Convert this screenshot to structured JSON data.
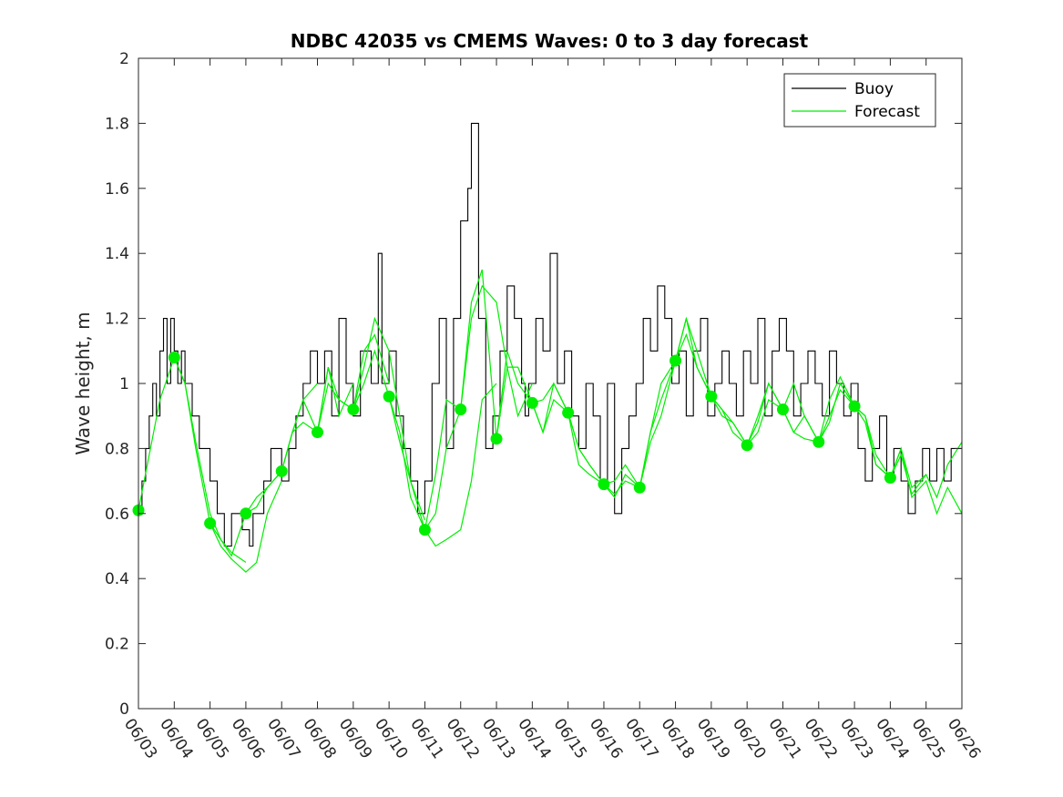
{
  "chart_data": {
    "type": "line",
    "title": "NDBC 42035 vs CMEMS Waves: 0 to 3 day forecast",
    "xlabel": "",
    "ylabel": "Wave height, m",
    "ylim": [
      0,
      2
    ],
    "yticks": [
      "0",
      "0.2",
      "0.4",
      "0.6",
      "0.8",
      "1",
      "1.2",
      "1.4",
      "1.6",
      "1.8",
      "2"
    ],
    "xlim": [
      0,
      23
    ],
    "xticks": [
      "06/03",
      "06/04",
      "06/05",
      "06/06",
      "06/07",
      "06/08",
      "06/09",
      "06/10",
      "06/11",
      "06/12",
      "06/13",
      "06/14",
      "06/15",
      "06/16",
      "06/17",
      "06/18",
      "06/19",
      "06/20",
      "06/21",
      "06/22",
      "06/23",
      "06/24",
      "06/25",
      "06/26"
    ],
    "legend": {
      "placement": "top-right",
      "entries": [
        "Buoy",
        "Forecast"
      ]
    },
    "colors": {
      "buoy": "#000000",
      "forecast": "#00ee00"
    },
    "buoy": {
      "x": [
        0,
        0.1,
        0.2,
        0.3,
        0.4,
        0.5,
        0.6,
        0.7,
        0.8,
        0.9,
        1.0,
        1.1,
        1.2,
        1.3,
        1.5,
        1.7,
        2.0,
        2.2,
        2.4,
        2.6,
        2.9,
        3.1,
        3.2,
        3.5,
        3.7,
        4.0,
        4.2,
        4.4,
        4.6,
        4.8,
        5.0,
        5.2,
        5.4,
        5.6,
        5.8,
        6.0,
        6.2,
        6.5,
        6.7,
        6.8,
        7.0,
        7.2,
        7.4,
        7.6,
        7.8,
        8.0,
        8.2,
        8.4,
        8.6,
        8.8,
        9.0,
        9.2,
        9.3,
        9.5,
        9.7,
        9.9,
        10.1,
        10.3,
        10.5,
        10.7,
        10.8,
        10.9,
        11.1,
        11.3,
        11.5,
        11.7,
        11.9,
        12.1,
        12.3,
        12.5,
        12.7,
        12.9,
        13.1,
        13.3,
        13.5,
        13.7,
        13.9,
        14.1,
        14.3,
        14.5,
        14.7,
        14.9,
        15.1,
        15.3,
        15.5,
        15.7,
        15.9,
        16.1,
        16.3,
        16.5,
        16.7,
        16.9,
        17.1,
        17.3,
        17.5,
        17.7,
        17.9,
        18.1,
        18.3,
        18.5,
        18.7,
        18.9,
        19.1,
        19.3,
        19.5,
        19.7,
        19.9,
        20.1,
        20.3,
        20.5,
        20.7,
        20.9,
        21.1,
        21.3,
        21.5,
        21.7,
        21.9,
        22.1,
        22.3,
        22.5,
        22.7,
        23.0
      ],
      "y": [
        0.6,
        0.7,
        0.8,
        0.9,
        1.0,
        0.9,
        1.1,
        1.2,
        1.0,
        1.2,
        1.1,
        1.0,
        1.1,
        1.0,
        0.9,
        0.8,
        0.7,
        0.6,
        0.5,
        0.6,
        0.55,
        0.5,
        0.6,
        0.7,
        0.8,
        0.7,
        0.8,
        0.9,
        1.0,
        1.1,
        1.0,
        1.1,
        0.9,
        1.2,
        1.0,
        0.9,
        1.1,
        1.0,
        1.4,
        1.0,
        1.1,
        0.9,
        0.8,
        0.7,
        0.6,
        0.7,
        1.0,
        1.2,
        0.8,
        1.2,
        1.5,
        1.6,
        1.8,
        1.2,
        0.8,
        0.9,
        1.1,
        1.3,
        1.2,
        1.0,
        0.9,
        1.0,
        1.2,
        1.1,
        1.4,
        1.0,
        1.1,
        0.9,
        0.8,
        1.0,
        0.9,
        0.7,
        1.0,
        0.6,
        0.8,
        0.9,
        1.0,
        1.2,
        1.1,
        1.3,
        1.2,
        1.0,
        1.1,
        0.9,
        1.1,
        1.2,
        0.9,
        1.0,
        1.1,
        1.0,
        0.9,
        1.1,
        1.0,
        1.2,
        0.9,
        1.1,
        1.2,
        1.1,
        0.9,
        1.0,
        1.1,
        1.0,
        0.9,
        1.1,
        1.0,
        0.9,
        1.0,
        0.8,
        0.7,
        0.8,
        0.9,
        0.7,
        0.8,
        0.7,
        0.6,
        0.7,
        0.8,
        0.7,
        0.8,
        0.7,
        0.8,
        0.8
      ]
    },
    "forecast_runs": [
      {
        "x": [
          0,
          0.3,
          0.6,
          1.0,
          1.3,
          1.6,
          2.0,
          2.3,
          2.6,
          3.0
        ],
        "y": [
          0.61,
          0.78,
          0.95,
          1.08,
          1.0,
          0.82,
          0.6,
          0.52,
          0.48,
          0.45
        ]
      },
      {
        "x": [
          1,
          1.3,
          1.6,
          2.0,
          2.3,
          2.6,
          3.0,
          3.3,
          3.6,
          4.0
        ],
        "y": [
          1.08,
          1.0,
          0.8,
          0.57,
          0.5,
          0.46,
          0.42,
          0.45,
          0.6,
          0.7
        ]
      },
      {
        "x": [
          2,
          2.3,
          2.6,
          3.0,
          3.3,
          3.6,
          4.0,
          4.3,
          4.6,
          5.0
        ],
        "y": [
          0.57,
          0.52,
          0.47,
          0.6,
          0.62,
          0.68,
          0.73,
          0.85,
          0.95,
          1.0
        ]
      },
      {
        "x": [
          3,
          3.3,
          3.6,
          4.0,
          4.3,
          4.6,
          5.0,
          5.3,
          5.6,
          6.0
        ],
        "y": [
          0.6,
          0.65,
          0.68,
          0.73,
          0.85,
          0.95,
          0.85,
          1.05,
          0.9,
          1.0
        ]
      },
      {
        "x": [
          4,
          4.3,
          4.6,
          5.0,
          5.3,
          5.6,
          6.0,
          6.3,
          6.6,
          7.0
        ],
        "y": [
          0.73,
          0.85,
          0.88,
          0.85,
          1.0,
          0.95,
          0.92,
          1.1,
          1.15,
          1.0
        ]
      },
      {
        "x": [
          5,
          5.3,
          5.6,
          6.0,
          6.3,
          6.6,
          7.0,
          7.3,
          7.6,
          8.0
        ],
        "y": [
          0.85,
          1.05,
          0.95,
          0.92,
          1.05,
          1.2,
          1.1,
          0.9,
          0.7,
          0.58
        ]
      },
      {
        "x": [
          6,
          6.3,
          6.6,
          7.0,
          7.3,
          7.6,
          8.0,
          8.3,
          8.6,
          9.0
        ],
        "y": [
          0.92,
          1.0,
          1.1,
          0.96,
          0.85,
          0.65,
          0.55,
          0.6,
          0.8,
          0.92
        ]
      },
      {
        "x": [
          7,
          7.3,
          7.6,
          8.0,
          8.3,
          8.6,
          9.0,
          9.3,
          9.6,
          10.0
        ],
        "y": [
          0.96,
          0.82,
          0.7,
          0.55,
          0.5,
          0.52,
          0.55,
          0.7,
          0.95,
          1.0
        ]
      },
      {
        "x": [
          8,
          8.3,
          8.6,
          9.0,
          9.3,
          9.6,
          10.0,
          10.3,
          10.6,
          11.0
        ],
        "y": [
          0.55,
          0.72,
          0.95,
          0.92,
          1.2,
          1.3,
          1.25,
          1.05,
          0.9,
          1.0
        ]
      },
      {
        "x": [
          9,
          9.3,
          9.6,
          10.0,
          10.3,
          10.6,
          11.0,
          11.3,
          11.6,
          12.0
        ],
        "y": [
          0.92,
          1.25,
          1.35,
          0.83,
          1.1,
          1.0,
          0.94,
          0.85,
          0.95,
          0.91
        ]
      },
      {
        "x": [
          10,
          10.3,
          10.6,
          11.0,
          11.3,
          11.6,
          12.0,
          12.3,
          12.6,
          13.0
        ],
        "y": [
          0.83,
          1.05,
          1.05,
          0.94,
          0.85,
          1.0,
          0.91,
          0.8,
          0.75,
          0.69
        ]
      },
      {
        "x": [
          11,
          11.3,
          11.6,
          12.0,
          12.3,
          12.6,
          13.0,
          13.3,
          13.6,
          14.0
        ],
        "y": [
          0.94,
          0.95,
          1.0,
          0.91,
          0.75,
          0.72,
          0.69,
          0.65,
          0.72,
          0.68
        ]
      },
      {
        "x": [
          12,
          12.3,
          12.6,
          13.0,
          13.3,
          13.6,
          14.0,
          14.3,
          14.6,
          15.0
        ],
        "y": [
          0.91,
          0.8,
          0.75,
          0.69,
          0.66,
          0.7,
          0.68,
          0.85,
          0.95,
          1.07
        ]
      },
      {
        "x": [
          13,
          13.3,
          13.6,
          14.0,
          14.3,
          14.6,
          15.0,
          15.3,
          15.6,
          16.0
        ],
        "y": [
          0.69,
          0.7,
          0.75,
          0.68,
          0.82,
          0.9,
          1.07,
          1.2,
          1.1,
          0.96
        ]
      },
      {
        "x": [
          14,
          14.3,
          14.6,
          15.0,
          15.3,
          15.6,
          16.0,
          16.3,
          16.6,
          17.0
        ],
        "y": [
          0.68,
          0.85,
          1.0,
          1.07,
          1.15,
          1.05,
          0.96,
          0.9,
          0.88,
          0.81
        ]
      },
      {
        "x": [
          15,
          15.3,
          15.6,
          16.0,
          16.3,
          16.6,
          17.0,
          17.3,
          17.6,
          18.0
        ],
        "y": [
          1.07,
          1.2,
          1.05,
          0.96,
          0.92,
          0.85,
          0.81,
          0.85,
          0.95,
          0.92
        ]
      },
      {
        "x": [
          16,
          16.3,
          16.6,
          17.0,
          17.3,
          17.6,
          18.0,
          18.3,
          18.6,
          19.0
        ],
        "y": [
          0.96,
          0.92,
          0.88,
          0.81,
          0.9,
          1.0,
          0.92,
          0.85,
          0.83,
          0.82
        ]
      },
      {
        "x": [
          17,
          17.3,
          17.6,
          18.0,
          18.3,
          18.6,
          19.0,
          19.3,
          19.6,
          20.0
        ],
        "y": [
          0.81,
          0.88,
          1.0,
          0.92,
          0.85,
          0.9,
          0.82,
          0.88,
          1.0,
          0.93
        ]
      },
      {
        "x": [
          18,
          18.3,
          18.6,
          19.0,
          19.3,
          19.6,
          20.0,
          20.3,
          20.6,
          21.0
        ],
        "y": [
          0.92,
          1.0,
          0.9,
          0.82,
          0.9,
          0.98,
          0.93,
          0.9,
          0.78,
          0.71
        ]
      },
      {
        "x": [
          19,
          19.3,
          19.6,
          20.0,
          20.3,
          20.6,
          21.0,
          21.3,
          21.6,
          22.0
        ],
        "y": [
          0.82,
          0.95,
          1.02,
          0.93,
          0.88,
          0.75,
          0.71,
          0.78,
          0.66,
          0.72
        ]
      },
      {
        "x": [
          20,
          20.3,
          20.6,
          21.0,
          21.3,
          21.6,
          22.0,
          22.3,
          22.6,
          23.0
        ],
        "y": [
          0.93,
          0.9,
          0.75,
          0.71,
          0.8,
          0.68,
          0.72,
          0.65,
          0.75,
          0.82
        ]
      },
      {
        "x": [
          21,
          21.3,
          21.6,
          22.0,
          22.3,
          22.6,
          23.0
        ],
        "y": [
          0.71,
          0.8,
          0.65,
          0.7,
          0.6,
          0.68,
          0.6
        ]
      }
    ],
    "forecast_start_points": {
      "x": [
        0,
        1,
        2,
        3,
        4,
        5,
        6,
        7,
        8,
        9,
        10,
        11,
        12,
        13,
        14,
        15,
        16,
        17,
        18,
        19,
        20,
        21
      ],
      "y": [
        0.61,
        1.08,
        0.57,
        0.6,
        0.73,
        0.85,
        0.92,
        0.96,
        0.55,
        0.92,
        0.83,
        0.94,
        0.91,
        0.69,
        0.68,
        1.07,
        0.96,
        0.81,
        0.92,
        0.82,
        0.93,
        0.71
      ]
    }
  }
}
